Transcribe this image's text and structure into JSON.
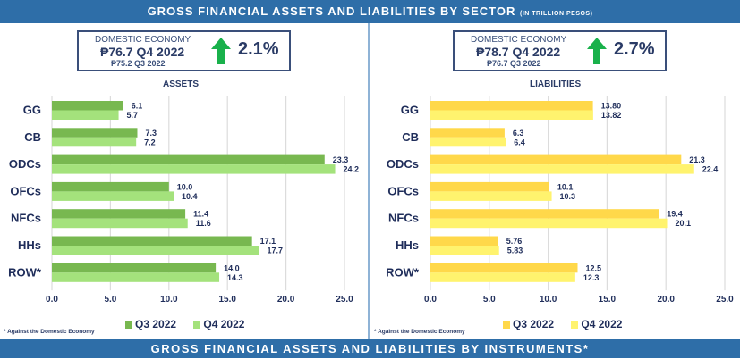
{
  "header": {
    "title": "GROSS FINANCIAL ASSETS AND LIABILITIES BY SECTOR",
    "subtitle": "(IN TRILLION PESOS)"
  },
  "footer_banner": "GROSS FINANCIAL ASSETS AND LIABILITIES BY INSTRUMENTS*",
  "panels": [
    {
      "kpi": {
        "label": "DOMESTIC ECONOMY",
        "current": "₱76.7 Q4 2022",
        "previous": "₱75.2 Q3 2022",
        "change": "2.1%",
        "direction": "up",
        "arrow_color": "#19b14b"
      },
      "subtitle": "ASSETS",
      "footnote": "* Against the Domestic Economy"
    },
    {
      "kpi": {
        "label": "DOMESTIC ECONOMY",
        "current": "₱78.7 Q4 2022",
        "previous": "₱76.7 Q3 2022",
        "change": "2.7%",
        "direction": "up",
        "arrow_color": "#19b14b"
      },
      "subtitle": "LIABILITIES",
      "footnote": "* Against the Domestic Economy"
    }
  ],
  "chart_data": [
    {
      "type": "bar",
      "orientation": "horizontal",
      "title": "ASSETS",
      "categories": [
        "GG",
        "CB",
        "ODCs",
        "OFCs",
        "NFCs",
        "HHs",
        "ROW*"
      ],
      "series": [
        {
          "name": "Q3 2022",
          "color": "#78b850",
          "values": [
            6.1,
            7.3,
            23.3,
            10.0,
            11.4,
            17.1,
            14.0
          ],
          "labels": [
            "6.1",
            "7.3",
            "23.3",
            "10.0",
            "11.4",
            "17.1",
            "14.0"
          ]
        },
        {
          "name": "Q4 2022",
          "color": "#a4e27c",
          "values": [
            5.7,
            7.2,
            24.2,
            10.4,
            11.6,
            17.7,
            14.3
          ],
          "labels": [
            "5.7",
            "7.2",
            "24.2",
            "10.4",
            "11.6",
            "17.7",
            "14.3"
          ]
        }
      ],
      "xlim": [
        0,
        25
      ],
      "xticks": [
        "0.0",
        "5.0",
        "10.0",
        "15.0",
        "20.0",
        "25.0"
      ],
      "grid": true,
      "legend": "bottom"
    },
    {
      "type": "bar",
      "orientation": "horizontal",
      "title": "LIABILITIES",
      "categories": [
        "GG",
        "CB",
        "ODCs",
        "OFCs",
        "NFCs",
        "HHs",
        "ROW*"
      ],
      "series": [
        {
          "name": "Q3 2022",
          "color": "#ffd84a",
          "values": [
            13.8,
            6.3,
            21.3,
            10.1,
            19.4,
            5.76,
            12.5
          ],
          "labels": [
            "13.80",
            "6.3",
            "21.3",
            "10.1",
            "19.4",
            "5.76",
            "12.5"
          ]
        },
        {
          "name": "Q4 2022",
          "color": "#fff36e",
          "values": [
            13.82,
            6.4,
            22.4,
            10.3,
            20.1,
            5.83,
            12.3
          ],
          "labels": [
            "13.82",
            "6.4",
            "22.4",
            "10.3",
            "20.1",
            "5.83",
            "12.3"
          ]
        }
      ],
      "xlim": [
        0,
        25
      ],
      "xticks": [
        "0.0",
        "5.0",
        "10.0",
        "15.0",
        "20.0",
        "25.0"
      ],
      "grid": true,
      "legend": "bottom"
    }
  ]
}
